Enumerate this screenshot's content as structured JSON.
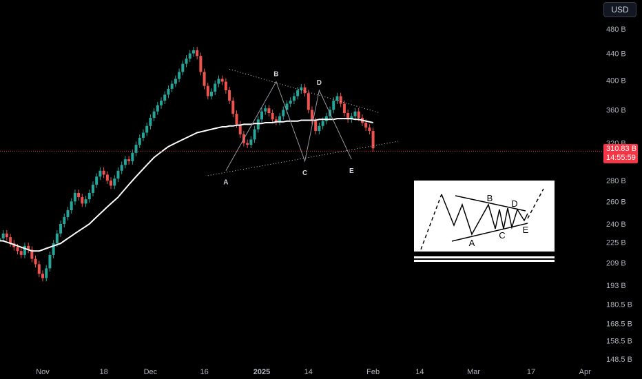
{
  "toolbar": {
    "currency_label": "USD"
  },
  "price_tag": {
    "value": "310.83 B",
    "countdown": "14:55:59"
  },
  "colors": {
    "up": "#26a69a",
    "down": "#ef5350",
    "ma": "#ffffff",
    "last_price_line": "#f23645",
    "grid": "none"
  },
  "chart_data": {
    "type": "candlestick",
    "title": "",
    "y_scale": "log",
    "y_ticks": [
      "480 B",
      "440 B",
      "400 B",
      "360 B",
      "320 B",
      "280 B",
      "260 B",
      "240 B",
      "225 B",
      "209 B",
      "193 B",
      "180.5 B",
      "168.5 B",
      "158.5 B",
      "148.5 B"
    ],
    "y_tick_values": [
      480,
      440,
      400,
      360,
      320,
      280,
      260,
      240,
      225,
      209,
      193,
      180.5,
      168.5,
      158.5,
      148.5
    ],
    "ylim": [
      145,
      520
    ],
    "x_ticks": [
      "Nov",
      "18",
      "Dec",
      "16",
      "2025",
      "14",
      "Feb",
      "14",
      "Mar",
      "17",
      "Apr"
    ],
    "x_tick_dates": [
      "2024-11-01",
      "2024-11-18",
      "2024-12-01",
      "2024-12-16",
      "2025-01-01",
      "2025-01-14",
      "2025-02-01",
      "2025-02-14",
      "2025-03-01",
      "2025-03-17",
      "2025-04-01"
    ],
    "last_price": 310.83,
    "series": [
      {
        "type": "candles",
        "ohlc_sample_start": "2024-10-20",
        "close": [
          228,
          232,
          229,
          224,
          221,
          218,
          215,
          222,
          219,
          212,
          208,
          201,
          198,
          205,
          215,
          224,
          232,
          240,
          246,
          252,
          260,
          268,
          264,
          258,
          262,
          268,
          276,
          284,
          290,
          286,
          280,
          275,
          282,
          290,
          296,
          302,
          300,
          309,
          318,
          326,
          332,
          340,
          350,
          358,
          366,
          372,
          380,
          388,
          395,
          402,
          412,
          424,
          432,
          440,
          445,
          436,
          412,
          392,
          378,
          384,
          395,
          402,
          398,
          386,
          372,
          355,
          342,
          330,
          320,
          318,
          324,
          336,
          348,
          358,
          362,
          356,
          348,
          345,
          352,
          360,
          368,
          372,
          378,
          386,
          390,
          382,
          360,
          346,
          334,
          340,
          346,
          352,
          360,
          372,
          378,
          368,
          356,
          348,
          352,
          358,
          350,
          344,
          338,
          334,
          314
        ],
        "note": "Daily candles; red when close below previous close, teal otherwise"
      },
      {
        "type": "line",
        "name": "",
        "values": [
          226,
          226,
          225,
          224,
          223,
          222,
          221,
          220,
          219,
          218,
          218,
          218,
          219,
          220,
          221,
          222,
          223,
          224,
          226,
          228,
          230,
          232,
          234,
          236,
          238,
          240,
          243,
          246,
          249,
          252,
          255,
          258,
          261,
          264,
          268,
          272,
          276,
          280,
          284,
          288,
          292,
          296,
          300,
          304,
          307,
          310,
          313,
          316,
          318,
          320,
          322,
          324,
          326,
          328,
          330,
          332,
          333,
          334,
          335,
          336,
          337,
          338,
          339,
          339,
          340,
          340,
          341,
          341,
          342,
          342,
          342,
          343,
          343,
          343,
          344,
          344,
          344,
          345,
          345,
          345,
          346,
          346,
          346,
          346,
          347,
          347,
          347,
          347,
          347,
          348,
          348,
          348,
          348,
          348,
          349,
          349,
          349,
          349,
          349,
          348,
          348,
          347,
          346,
          345,
          344
        ]
      }
    ],
    "annotations": {
      "wave_labels": [
        {
          "label": "A",
          "date": "2024-12-22",
          "price": 290
        },
        {
          "label": "B",
          "date": "2025-01-05",
          "price": 398
        },
        {
          "label": "C",
          "date": "2025-01-13",
          "price": 300
        },
        {
          "label": "D",
          "date": "2025-01-17",
          "price": 386
        },
        {
          "label": "E",
          "date": "2025-01-26",
          "price": 302
        }
      ],
      "triangle_upper": [
        {
          "date": "2024-12-23",
          "price": 416
        },
        {
          "date": "2025-02-03",
          "price": 356
        }
      ],
      "triangle_lower": [
        {
          "date": "2024-12-17",
          "price": 285
        },
        {
          "date": "2025-02-08",
          "price": 322
        }
      ],
      "inset_labels": [
        "A",
        "B",
        "C",
        "D",
        "E"
      ]
    }
  }
}
